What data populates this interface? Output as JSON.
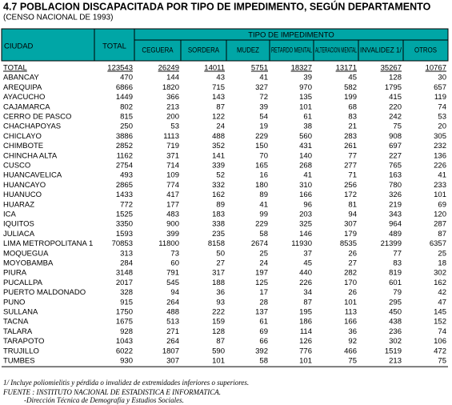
{
  "header": {
    "title": "4.7  POBLACION DISCAPACITADA POR TIPO DE IMPEDIMENTO, SEGÚN DEPARTAMENTO",
    "subtitle": "(CENSO NACIONAL DE 1993)"
  },
  "table": {
    "group": "TIPO DE IMPEDIMENTO",
    "columns": [
      "CIUDAD",
      "TOTAL",
      "CEGUERA",
      "SORDERA",
      "MUDEZ",
      "RETARDO MENTAL",
      "ALTERACION MENTAL",
      "INVALIDEZ 1/",
      "OTROS"
    ],
    "rows": [
      [
        "TOTAL",
        123543,
        26249,
        14011,
        5751,
        18327,
        13171,
        35267,
        10767
      ],
      [
        "ABANCAY",
        470,
        144,
        43,
        41,
        39,
        45,
        128,
        30
      ],
      [
        "AREQUIPA",
        6866,
        1820,
        715,
        327,
        970,
        582,
        1795,
        657
      ],
      [
        "AYACUCHO",
        1449,
        366,
        143,
        72,
        135,
        199,
        415,
        119
      ],
      [
        "CAJAMARCA",
        802,
        213,
        87,
        39,
        101,
        68,
        220,
        74
      ],
      [
        "CERRO DE PASCO",
        815,
        200,
        122,
        54,
        61,
        83,
        242,
        53
      ],
      [
        "CHACHAPOYAS",
        250,
        53,
        24,
        19,
        38,
        21,
        75,
        20
      ],
      [
        "CHICLAYO",
        3886,
        1113,
        488,
        229,
        560,
        283,
        908,
        305
      ],
      [
        "CHIMBOTE",
        2852,
        719,
        352,
        150,
        431,
        261,
        697,
        232
      ],
      [
        "CHINCHA ALTA",
        1162,
        371,
        141,
        70,
        140,
        77,
        227,
        136
      ],
      [
        "CUSCO",
        2754,
        714,
        339,
        165,
        268,
        277,
        765,
        226
      ],
      [
        "HUANCAVELICA",
        493,
        109,
        52,
        16,
        41,
        71,
        163,
        41
      ],
      [
        "HUANCAYO",
        2865,
        774,
        332,
        180,
        310,
        256,
        780,
        233
      ],
      [
        "HUANUCO",
        1433,
        417,
        162,
        89,
        166,
        172,
        326,
        101
      ],
      [
        "HUARAZ",
        772,
        177,
        89,
        41,
        96,
        81,
        219,
        69
      ],
      [
        "ICA",
        1525,
        483,
        183,
        99,
        203,
        94,
        343,
        120
      ],
      [
        "IQUITOS",
        3350,
        900,
        338,
        229,
        325,
        307,
        964,
        287
      ],
      [
        "JULIACA",
        1593,
        399,
        235,
        58,
        146,
        179,
        489,
        87
      ],
      [
        "LIMA METROPOLITANA 1",
        70853,
        11800,
        8158,
        2674,
        11930,
        8535,
        21399,
        6357
      ],
      [
        "MOQUEGUA",
        313,
        73,
        50,
        25,
        37,
        26,
        77,
        25
      ],
      [
        "MOYOBAMBA",
        284,
        60,
        27,
        24,
        45,
        27,
        83,
        18
      ],
      [
        "PIURA",
        3148,
        791,
        317,
        197,
        440,
        282,
        819,
        302
      ],
      [
        "PUCALLPA",
        2017,
        545,
        188,
        125,
        226,
        170,
        601,
        162
      ],
      [
        "PUERTO MALDONADO",
        328,
        94,
        36,
        17,
        34,
        26,
        79,
        42
      ],
      [
        "PUNO",
        915,
        264,
        93,
        28,
        87,
        101,
        295,
        47
      ],
      [
        "SULLANA",
        1750,
        488,
        222,
        137,
        195,
        113,
        450,
        145
      ],
      [
        "TACNA",
        1675,
        513,
        159,
        61,
        186,
        166,
        438,
        152
      ],
      [
        "TALARA",
        928,
        271,
        128,
        69,
        114,
        36,
        236,
        74
      ],
      [
        "TARAPOTO",
        1043,
        264,
        87,
        66,
        126,
        92,
        302,
        106
      ],
      [
        "TRUJILLO",
        6022,
        1807,
        590,
        392,
        776,
        466,
        1519,
        472
      ],
      [
        "TUMBES",
        930,
        307,
        101,
        58,
        101,
        75,
        213,
        75
      ]
    ]
  },
  "notes": [
    "1/ Incluye poliomielitis y pérdida o invalidez de extremidades inferiores o superiores.",
    "FUENTE : INSTITUTO NACIONAL DE ESTADISTICA E INFORMATICA.",
    "-Dirección Técnica de Demografía y Estudios Sociales."
  ]
}
